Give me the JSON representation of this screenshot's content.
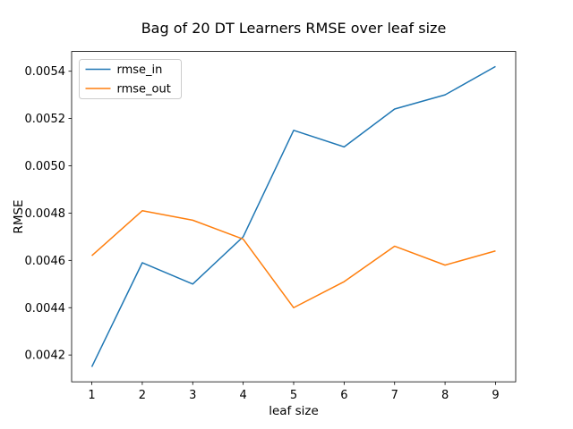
{
  "figure": {
    "background": "#ffffff"
  },
  "chart_data": {
    "type": "line",
    "title": "Bag of 20 DT Learners RMSE over leaf size",
    "xlabel": "leaf size",
    "ylabel": "RMSE",
    "x": [
      1,
      2,
      3,
      4,
      5,
      6,
      7,
      8,
      9
    ],
    "series": [
      {
        "name": "rmse_in",
        "color": "#1f77b4",
        "values": [
          0.00415,
          0.00459,
          0.0045,
          0.0047,
          0.00515,
          0.00508,
          0.00524,
          0.0053,
          0.00542
        ]
      },
      {
        "name": "rmse_out",
        "color": "#ff7f0e",
        "values": [
          0.00462,
          0.00481,
          0.00477,
          0.00469,
          0.0044,
          0.00451,
          0.00466,
          0.00458,
          0.00464
        ]
      }
    ],
    "xticks": [
      "1",
      "2",
      "3",
      "4",
      "5",
      "6",
      "7",
      "8",
      "9"
    ],
    "ytick_labels": [
      "0.0042",
      "0.0044",
      "0.0046",
      "0.0048",
      "0.0050",
      "0.0052",
      "0.0054"
    ],
    "yticks": [
      0.0042,
      0.0044,
      0.0046,
      0.0048,
      0.005,
      0.0052,
      0.0054
    ],
    "xlim": [
      0.6,
      9.4
    ],
    "ylim": [
      0.0040865,
      0.0054835
    ],
    "grid": false,
    "legend": {
      "position": "upper left"
    },
    "axis_color": "#000000",
    "legend_edge_color": "#cccccc",
    "line_width": 1.5,
    "spine_width": 0.8
  }
}
